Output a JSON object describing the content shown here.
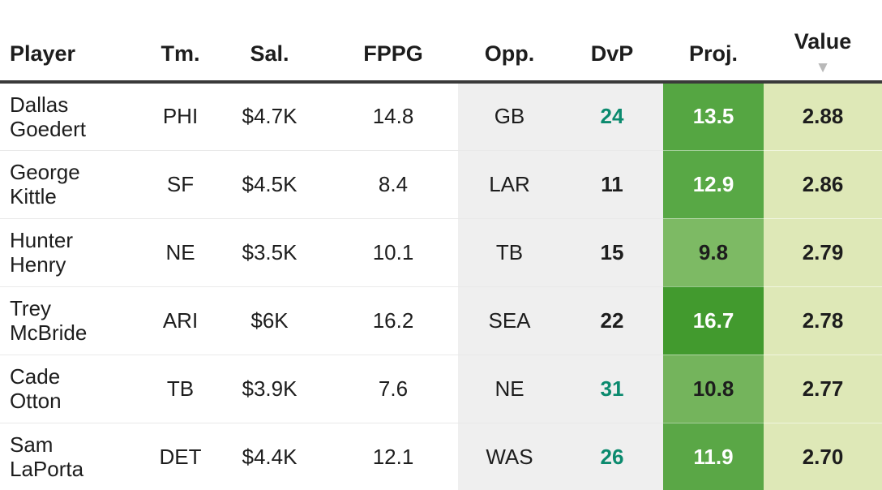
{
  "header": {
    "columns": {
      "player": "Player",
      "team": "Tm.",
      "salary": "Sal.",
      "fppg": "FPPG",
      "opp": "Opp.",
      "dvp": "DvP",
      "proj": "Proj.",
      "value": "Value"
    },
    "sort": {
      "column": "Value",
      "direction": "desc",
      "indicator": "▼"
    }
  },
  "rows": [
    {
      "first": "Dallas",
      "last": "Goedert",
      "team": "PHI",
      "salary": "$4.7K",
      "fppg": "14.8",
      "opp": "GB",
      "dvp": "24",
      "proj": "13.5",
      "value": "2.88"
    },
    {
      "first": "George",
      "last": "Kittle",
      "team": "SF",
      "salary": "$4.5K",
      "fppg": "8.4",
      "opp": "LAR",
      "dvp": "11",
      "proj": "12.9",
      "value": "2.86"
    },
    {
      "first": "Hunter",
      "last": "Henry",
      "team": "NE",
      "salary": "$3.5K",
      "fppg": "10.1",
      "opp": "TB",
      "dvp": "15",
      "proj": "9.8",
      "value": "2.79"
    },
    {
      "first": "Trey",
      "last": "McBride",
      "team": "ARI",
      "salary": "$6K",
      "fppg": "16.2",
      "opp": "SEA",
      "dvp": "22",
      "proj": "16.7",
      "value": "2.78"
    },
    {
      "first": "Cade",
      "last": "Otton",
      "team": "TB",
      "salary": "$3.9K",
      "fppg": "7.6",
      "opp": "NE",
      "dvp": "31",
      "proj": "10.8",
      "value": "2.77"
    },
    {
      "first": "Sam",
      "last": "LaPorta",
      "team": "DET",
      "salary": "$4.4K",
      "fppg": "12.1",
      "opp": "WAS",
      "dvp": "26",
      "proj": "11.9",
      "value": "2.70"
    }
  ],
  "styles": {
    "text_dark": "#1d1d1d",
    "dvp_teal": "#0b8a6e",
    "dvp_fg": [
      "#0b8a6e",
      "#1d1d1d",
      "#1d1d1d",
      "#1d1d1d",
      "#0b8a6e",
      "#0b8a6e"
    ],
    "proj_bg": [
      "#55a642",
      "#58a845",
      "#7dba64",
      "#429a2e",
      "#74b45c",
      "#5aa746"
    ],
    "proj_fg": [
      "#ffffff",
      "#ffffff",
      "#1d1d1d",
      "#ffffff",
      "#1d1d1d",
      "#ffffff"
    ],
    "opp_dvp_bg": "#efefef",
    "value_bg": "#dee8b7",
    "header_border": "#3a3a3a",
    "sort_caret_color": "#b9b9b9"
  }
}
